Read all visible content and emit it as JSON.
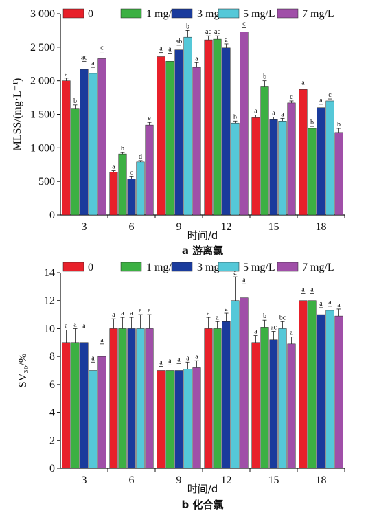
{
  "chart_data": [
    {
      "type": "bar",
      "caption": "a 游离氯",
      "xlabel": "时间/d",
      "ylabel": "MLSS/(mg·L⁻¹)",
      "ylim": [
        0,
        3000
      ],
      "yticks": [
        0,
        500,
        1000,
        1500,
        2000,
        2500,
        3000
      ],
      "ytick_labels": [
        "0",
        "500",
        "1 000",
        "1 500",
        "2 000",
        "2 500",
        "3 000"
      ],
      "legend_position": "top",
      "categories": [
        "3",
        "6",
        "9",
        "12",
        "15",
        "18"
      ],
      "series": [
        {
          "name": "0",
          "color": "#e8202a",
          "values": [
            2000,
            640,
            2360,
            2610,
            1450,
            1870
          ],
          "errors": [
            40,
            20,
            60,
            60,
            40,
            40
          ],
          "sig": [
            "a",
            "a",
            "a",
            "ac",
            "a",
            "a"
          ]
        },
        {
          "name": "1 mg/L",
          "color": "#3cb043",
          "values": [
            1590,
            910,
            2290,
            2620,
            1920,
            1290
          ],
          "errors": [
            50,
            20,
            120,
            50,
            80,
            30
          ],
          "sig": [
            "b",
            "b",
            "a",
            "ac",
            "b",
            "b"
          ]
        },
        {
          "name": "3 mg/L",
          "color": "#1a3b9c",
          "values": [
            2170,
            540,
            2460,
            2490,
            1420,
            1600
          ],
          "errors": [
            120,
            30,
            70,
            60,
            40,
            50
          ],
          "sig": [
            "ac",
            "c",
            "ab",
            "a",
            "a",
            "a"
          ]
        },
        {
          "name": "5 mg/L",
          "color": "#55c8d8",
          "values": [
            2110,
            790,
            2650,
            1370,
            1400,
            1700
          ],
          "errors": [
            90,
            20,
            100,
            30,
            40,
            30
          ],
          "sig": [
            "a",
            "d",
            "b",
            "b",
            "a",
            "c"
          ]
        },
        {
          "name": "7 mg/L",
          "color": "#a04fa8",
          "values": [
            2330,
            1340,
            2200,
            2730,
            1670,
            1230
          ],
          "errors": [
            100,
            40,
            70,
            60,
            30,
            60
          ],
          "sig": [
            "c",
            "e",
            "a",
            "c",
            "c",
            "b"
          ]
        }
      ]
    },
    {
      "type": "bar",
      "caption": "b 化合氯",
      "xlabel": "时间/d",
      "ylabel": "SV₃₀/%",
      "ylim": [
        0,
        14
      ],
      "yticks": [
        0,
        2,
        4,
        6,
        8,
        10,
        12,
        14
      ],
      "ytick_labels": [
        "0",
        "2",
        "4",
        "6",
        "8",
        "10",
        "12",
        "14"
      ],
      "legend_position": "top",
      "categories": [
        "3",
        "6",
        "9",
        "12",
        "15",
        "18"
      ],
      "series": [
        {
          "name": "0",
          "color": "#e8202a",
          "values": [
            9.0,
            10.0,
            7.0,
            10.0,
            9.0,
            12.0
          ],
          "errors": [
            0.9,
            0.7,
            0.3,
            0.8,
            0.5,
            0.5
          ],
          "sig": [
            "a",
            "a",
            "a",
            "a",
            "a",
            "a"
          ]
        },
        {
          "name": "1 mg/L",
          "color": "#3cb043",
          "values": [
            9.0,
            10.0,
            7.0,
            10.0,
            10.1,
            12.0
          ],
          "errors": [
            1.0,
            0.8,
            0.4,
            0.5,
            0.5,
            0.5
          ],
          "sig": [
            "a",
            "a",
            "a",
            "a",
            "b",
            "a"
          ]
        },
        {
          "name": "3 mg/L",
          "color": "#1a3b9c",
          "values": [
            9.0,
            10.0,
            7.0,
            10.5,
            9.2,
            11.0
          ],
          "errors": [
            0.9,
            0.8,
            0.5,
            0.6,
            0.6,
            0.5
          ],
          "sig": [
            "a",
            "a",
            "a",
            "a",
            "ac",
            "a"
          ]
        },
        {
          "name": "5 mg/L",
          "color": "#55c8d8",
          "values": [
            7.0,
            10.0,
            7.1,
            12.0,
            10.0,
            11.3
          ],
          "errors": [
            0.6,
            1.0,
            0.5,
            1.7,
            0.5,
            0.3
          ],
          "sig": [
            "a",
            "a",
            "a",
            "a",
            "bc",
            "a"
          ]
        },
        {
          "name": "7 mg/L",
          "color": "#a04fa8",
          "values": [
            8.0,
            10.0,
            7.2,
            12.2,
            8.9,
            10.9
          ],
          "errors": [
            0.9,
            1.0,
            0.5,
            1.0,
            0.5,
            0.5
          ],
          "sig": [
            "a",
            "a",
            "a",
            "a",
            "a",
            "a"
          ]
        }
      ]
    }
  ]
}
